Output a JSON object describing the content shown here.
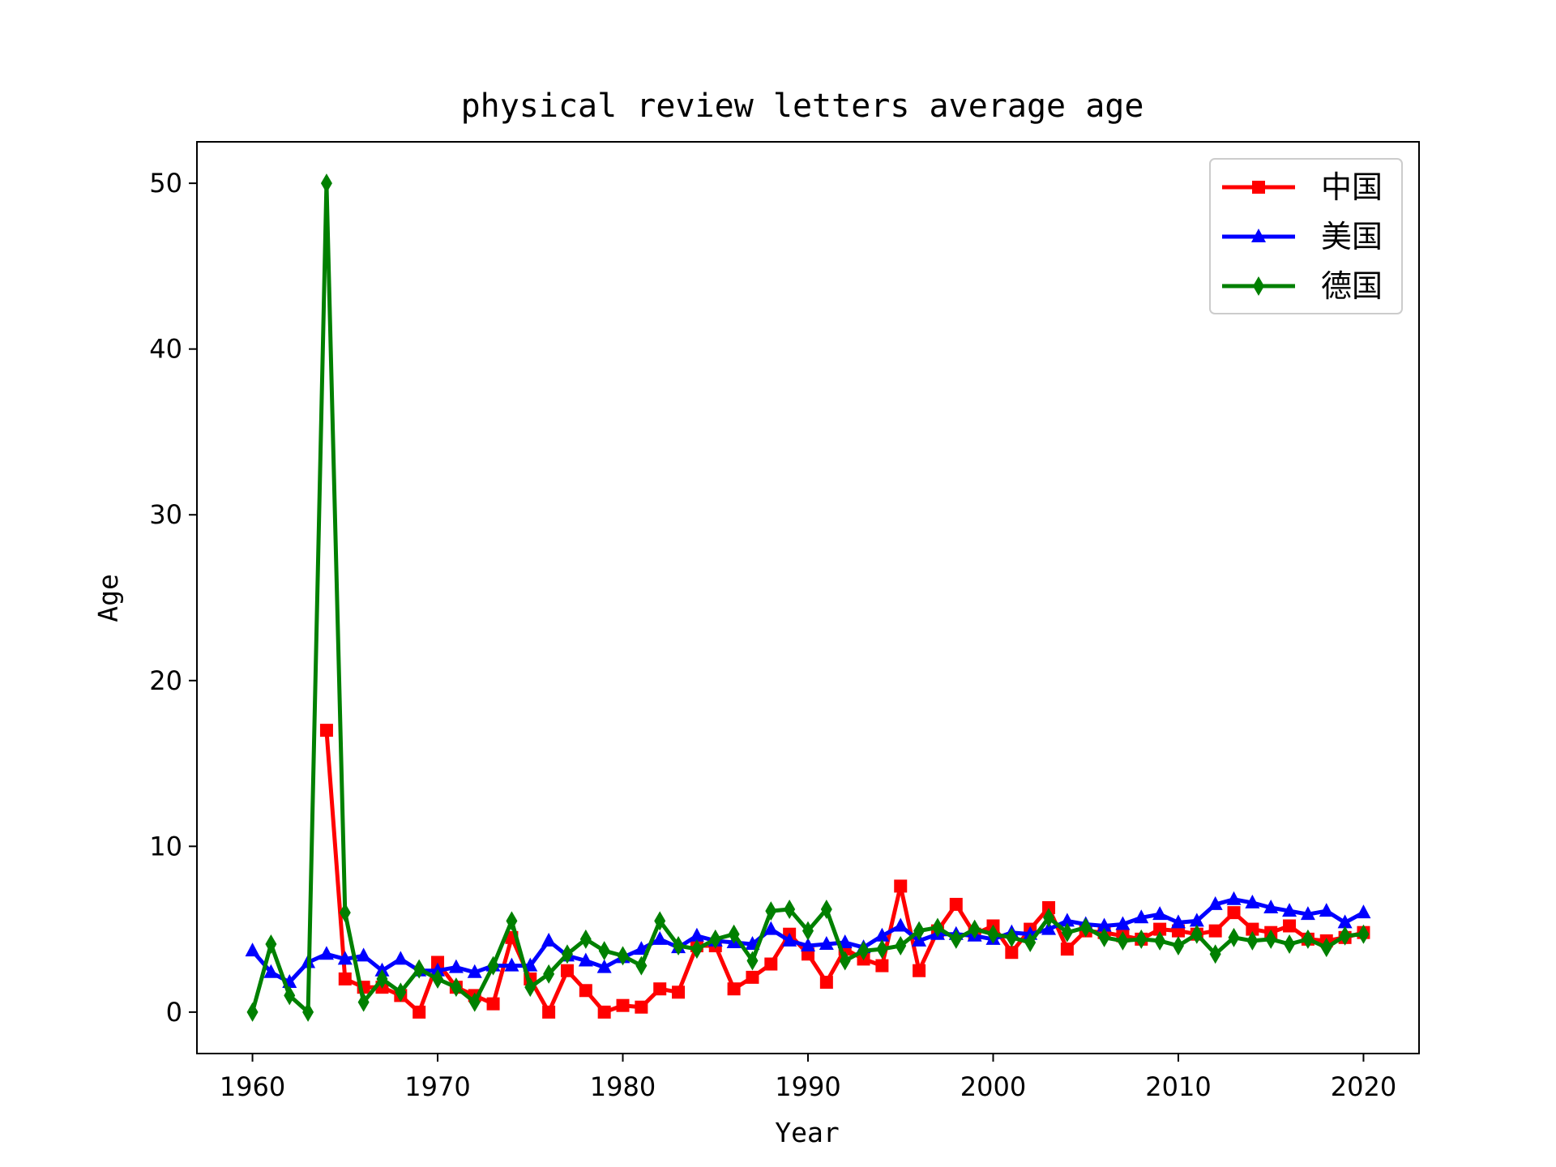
{
  "chart_data": {
    "type": "line",
    "title": "physical review letters average age",
    "xlabel": "Year",
    "ylabel": "Age",
    "xlim": [
      1957,
      2023
    ],
    "ylim": [
      -2.5,
      52.5
    ],
    "xticks": [
      1960,
      1970,
      1980,
      1990,
      2000,
      2010,
      2020
    ],
    "yticks": [
      0,
      10,
      20,
      30,
      40,
      50
    ],
    "grid": false,
    "legend_position": "top-right",
    "x": [
      1960,
      1961,
      1962,
      1963,
      1964,
      1965,
      1966,
      1967,
      1968,
      1969,
      1970,
      1971,
      1972,
      1973,
      1974,
      1975,
      1976,
      1977,
      1978,
      1979,
      1980,
      1981,
      1982,
      1983,
      1984,
      1985,
      1986,
      1987,
      1988,
      1989,
      1990,
      1991,
      1992,
      1993,
      1994,
      1995,
      1996,
      1997,
      1998,
      1999,
      2000,
      2001,
      2002,
      2003,
      2004,
      2005,
      2006,
      2007,
      2008,
      2009,
      2010,
      2011,
      2012,
      2013,
      2014,
      2015,
      2016,
      2017,
      2018,
      2019,
      2020
    ],
    "series": [
      {
        "name": "中国",
        "color": "#ff0000",
        "marker": "square",
        "values": [
          null,
          null,
          null,
          null,
          17.0,
          2.0,
          1.5,
          1.5,
          1.0,
          0.0,
          3.0,
          1.5,
          1.0,
          0.5,
          4.5,
          2.0,
          0.0,
          2.5,
          1.3,
          0.0,
          0.4,
          0.3,
          1.4,
          1.2,
          4.0,
          4.0,
          1.4,
          2.1,
          2.9,
          4.7,
          3.5,
          1.8,
          3.8,
          3.2,
          2.8,
          7.6,
          2.5,
          4.9,
          6.5,
          4.7,
          5.2,
          3.6,
          5.0,
          6.3,
          3.8,
          4.9,
          4.8,
          4.6,
          4.4,
          5.0,
          4.9,
          4.7,
          4.9,
          6.0,
          5.0,
          4.8,
          5.2,
          4.4,
          4.3,
          4.5,
          4.8
        ]
      },
      {
        "name": "美国",
        "color": "#0000ff",
        "marker": "triangle",
        "values": [
          3.7,
          2.4,
          1.8,
          3.0,
          3.5,
          3.2,
          3.4,
          2.5,
          3.2,
          2.5,
          2.5,
          2.7,
          2.4,
          2.8,
          2.8,
          2.8,
          4.3,
          3.4,
          3.1,
          2.7,
          3.3,
          3.8,
          4.4,
          3.9,
          4.6,
          4.3,
          4.2,
          4.1,
          5.0,
          4.3,
          4.0,
          4.1,
          4.2,
          3.9,
          4.6,
          5.2,
          4.3,
          4.7,
          4.7,
          4.6,
          4.4,
          4.8,
          4.7,
          5.0,
          5.5,
          5.3,
          5.2,
          5.3,
          5.7,
          5.9,
          5.4,
          5.5,
          6.5,
          6.8,
          6.6,
          6.3,
          6.1,
          5.9,
          6.1,
          5.4,
          6.0
        ]
      },
      {
        "name": "德国",
        "color": "#008000",
        "marker": "diamond",
        "values": [
          0.0,
          4.1,
          1.0,
          0.0,
          50.0,
          6.0,
          0.6,
          2.0,
          1.2,
          2.6,
          2.0,
          1.5,
          0.6,
          2.8,
          5.5,
          1.5,
          2.3,
          3.5,
          4.4,
          3.7,
          3.4,
          2.8,
          5.5,
          4.0,
          3.8,
          4.4,
          4.7,
          3.1,
          6.1,
          6.2,
          4.9,
          6.2,
          3.1,
          3.7,
          3.8,
          4.0,
          4.9,
          5.1,
          4.4,
          5.0,
          4.7,
          4.5,
          4.2,
          5.7,
          4.8,
          5.1,
          4.5,
          4.3,
          4.4,
          4.3,
          4.0,
          4.7,
          3.5,
          4.5,
          4.3,
          4.4,
          4.1,
          4.4,
          3.9,
          4.6,
          4.7
        ]
      }
    ]
  }
}
